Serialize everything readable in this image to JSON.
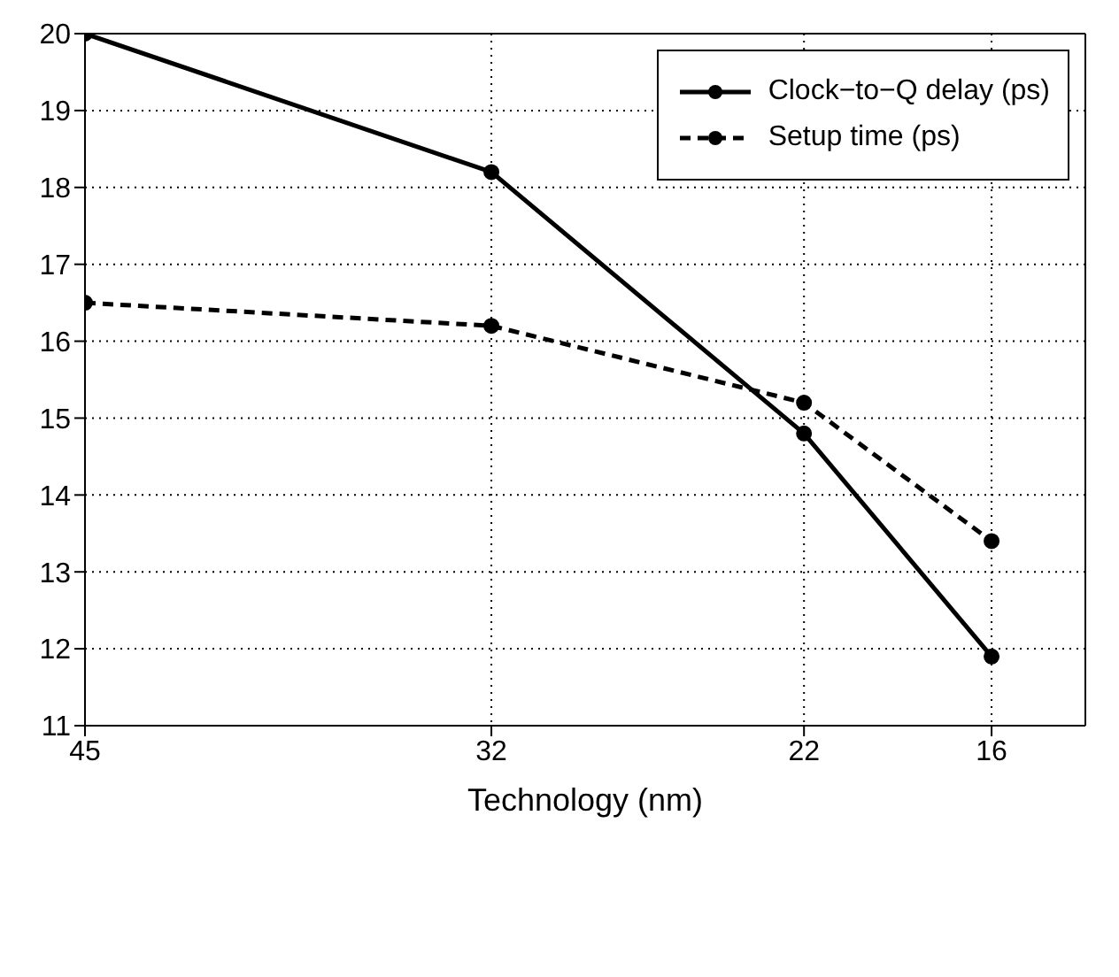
{
  "chart_data": {
    "type": "line",
    "xlabel": "Technology (nm)",
    "x": [
      45,
      32,
      22,
      16
    ],
    "xlim": [
      45,
      13
    ],
    "xticks": [
      45,
      32,
      22,
      16
    ],
    "ylim": [
      11,
      20
    ],
    "yticks": [
      11,
      12,
      13,
      14,
      15,
      16,
      17,
      18,
      19,
      20
    ],
    "grid": true,
    "legend": "top right",
    "marker": "circle",
    "series": [
      {
        "name": "Clock−to−Q delay (ps)",
        "color": "#000000",
        "values": [
          20,
          18.2,
          14.8,
          11.9
        ],
        "line_style": "solid"
      },
      {
        "name": "Setup time (ps)",
        "color": "#000000",
        "values": [
          16.5,
          16.2,
          15.2,
          13.4
        ],
        "line_style": "dashed"
      }
    ]
  }
}
